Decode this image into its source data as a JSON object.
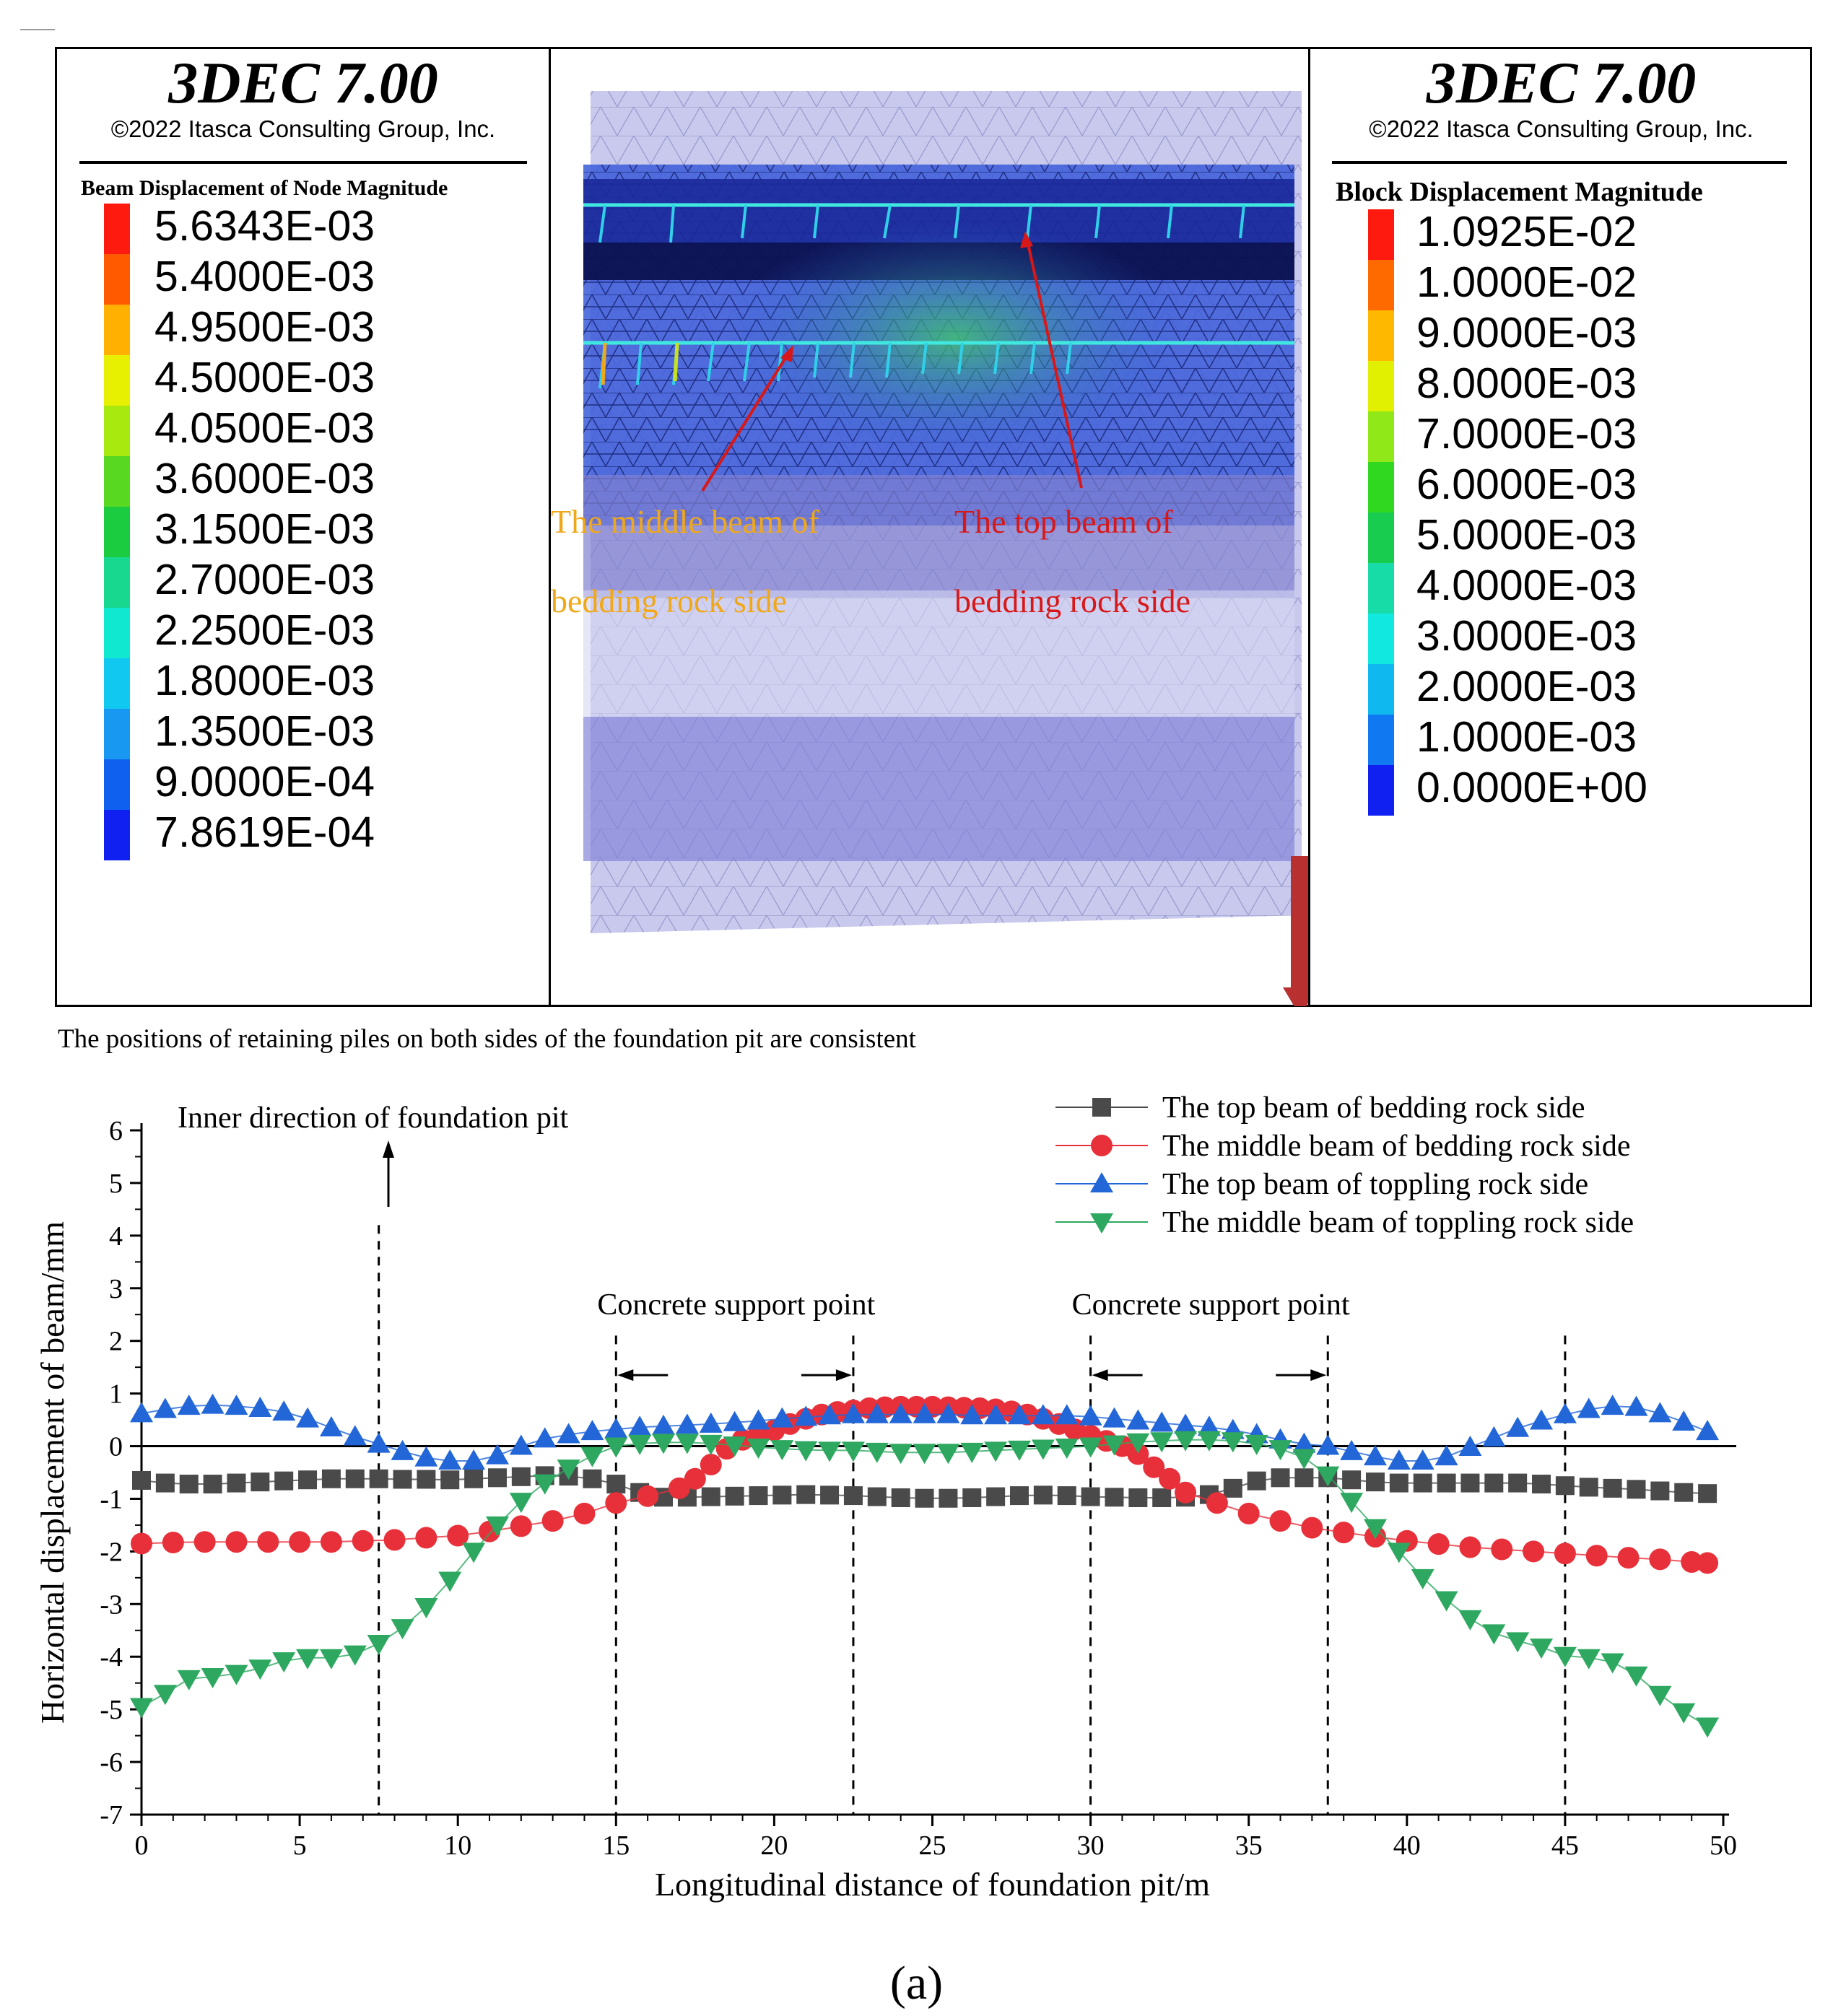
{
  "panel_left": {
    "brand": "3DEC 7.00",
    "copyright": "©2022 Itasca Consulting Group, Inc.",
    "legend_title": "Beam Displacement of Node Magnitude",
    "legend_values": [
      "5.6343E-03",
      "5.4000E-03",
      "4.9500E-03",
      "4.5000E-03",
      "4.0500E-03",
      "3.6000E-03",
      "3.1500E-03",
      "2.7000E-03",
      "2.2500E-03",
      "1.8000E-03",
      "1.3500E-03",
      "9.0000E-04",
      "7.8619E-04"
    ],
    "legend_colors": [
      "#ff1a10",
      "#ff5a00",
      "#ffb000",
      "#e6f000",
      "#a8ea10",
      "#58d820",
      "#1ccc40",
      "#18d890",
      "#10e8d0",
      "#10c8f0",
      "#1898f0",
      "#1060f0",
      "#1020f0"
    ]
  },
  "panel_right": {
    "brand": "3DEC 7.00",
    "copyright": "©2022 Itasca Consulting Group, Inc.",
    "legend_title": "Block  Displacement Magnitude",
    "legend_values": [
      "1.0925E-02",
      "1.0000E-02",
      "9.0000E-03",
      "8.0000E-03",
      "7.0000E-03",
      "6.0000E-03",
      "5.0000E-03",
      "4.0000E-03",
      "3.0000E-03",
      "2.0000E-03",
      "1.0000E-03",
      "0.0000E+00"
    ],
    "legend_colors": [
      "#ff1a10",
      "#ff6a00",
      "#ffb800",
      "#e0f000",
      "#90e818",
      "#30d820",
      "#18cc50",
      "#18dca8",
      "#10e8e0",
      "#10b8f0",
      "#1078f0",
      "#1020f0"
    ]
  },
  "model_annotations": {
    "middle_beam_line1": "The  middle  beam  of",
    "middle_beam_line2": "bedding rock side",
    "top_beam_line1": "The top beam of",
    "top_beam_line2": "bedding rock side",
    "middle_color": "#f0a818",
    "top_color": "#d81818"
  },
  "note": "The positions of retaining piles on both sides of the foundation pit are consistent",
  "caption": "(a)",
  "chart_data": {
    "type": "line",
    "xlabel": "Longitudinal distance of foundation pit/m",
    "ylabel": "Horizontal displacement of beam/mm",
    "xlim": [
      0,
      50
    ],
    "ylim": [
      -7,
      6
    ],
    "xticks": [
      0,
      5,
      10,
      15,
      20,
      25,
      30,
      35,
      40,
      45,
      50
    ],
    "yticks": [
      -7,
      -6,
      -5,
      -4,
      -3,
      -2,
      -1,
      0,
      1,
      2,
      3,
      4,
      5,
      6
    ],
    "dashed_x": [
      7.5,
      15,
      22.5,
      30,
      37.5,
      45
    ],
    "annotations": {
      "inner_direction": "Inner direction of foundation pit",
      "support_point_1": "Concrete support point",
      "support_point_2": "Concrete support point"
    },
    "series": [
      {
        "name": "The top beam of bedding rock side",
        "marker": "square",
        "color": "#4a4a4a",
        "x": [
          0,
          0.75,
          1.5,
          2.25,
          3,
          3.75,
          4.5,
          5.25,
          6,
          6.75,
          7.5,
          8.25,
          9,
          9.75,
          10.5,
          11.25,
          12,
          12.75,
          13.5,
          14.25,
          15,
          15.75,
          16.5,
          17.25,
          18,
          18.75,
          19.5,
          20.25,
          21,
          21.75,
          22.5,
          23.25,
          24,
          24.75,
          25.5,
          26.25,
          27,
          27.75,
          28.5,
          29.25,
          30,
          30.75,
          31.5,
          32.25,
          33,
          33.75,
          34.5,
          35.25,
          36,
          36.75,
          37.5,
          38.25,
          39,
          39.75,
          40.5,
          41.25,
          42,
          42.75,
          43.5,
          44.25,
          45,
          45.75,
          46.5,
          47.25,
          48,
          48.75,
          49.5
        ],
        "y": [
          -0.65,
          -0.7,
          -0.72,
          -0.72,
          -0.7,
          -0.68,
          -0.66,
          -0.64,
          -0.62,
          -0.62,
          -0.62,
          -0.63,
          -0.63,
          -0.64,
          -0.62,
          -0.6,
          -0.58,
          -0.56,
          -0.57,
          -0.62,
          -0.72,
          -0.88,
          -0.97,
          -0.97,
          -0.96,
          -0.95,
          -0.94,
          -0.93,
          -0.92,
          -0.93,
          -0.94,
          -0.96,
          -0.98,
          -0.99,
          -0.99,
          -0.98,
          -0.96,
          -0.94,
          -0.93,
          -0.94,
          -0.96,
          -0.97,
          -0.98,
          -0.98,
          -0.97,
          -0.92,
          -0.8,
          -0.66,
          -0.6,
          -0.6,
          -0.6,
          -0.64,
          -0.68,
          -0.7,
          -0.7,
          -0.7,
          -0.7,
          -0.7,
          -0.7,
          -0.72,
          -0.75,
          -0.78,
          -0.8,
          -0.82,
          -0.85,
          -0.88,
          -0.9
        ]
      },
      {
        "name": "The middle beam of bedding rock side",
        "marker": "circle",
        "color": "#e8303a",
        "x": [
          0,
          1,
          2,
          3,
          4,
          5,
          6,
          7,
          8,
          9,
          10,
          11,
          12,
          13,
          14,
          15,
          16,
          17,
          17.5,
          18,
          18.5,
          19,
          19.5,
          20,
          20.5,
          21,
          21.5,
          22,
          22.5,
          23,
          23.5,
          24,
          24.5,
          25,
          25.5,
          26,
          26.5,
          27,
          27.5,
          28,
          28.5,
          29,
          29.5,
          30,
          30.5,
          31,
          31.5,
          32,
          32.5,
          33,
          34,
          35,
          36,
          37,
          38,
          39,
          40,
          41,
          42,
          43,
          44,
          45,
          46,
          47,
          48,
          49,
          49.5
        ],
        "y": [
          -1.85,
          -1.83,
          -1.82,
          -1.82,
          -1.82,
          -1.82,
          -1.82,
          -1.8,
          -1.78,
          -1.74,
          -1.7,
          -1.62,
          -1.52,
          -1.42,
          -1.28,
          -1.08,
          -0.95,
          -0.8,
          -0.62,
          -0.35,
          -0.05,
          0.12,
          0.22,
          0.3,
          0.42,
          0.52,
          0.6,
          0.65,
          0.68,
          0.72,
          0.74,
          0.75,
          0.75,
          0.75,
          0.74,
          0.73,
          0.72,
          0.7,
          0.66,
          0.6,
          0.52,
          0.42,
          0.32,
          0.2,
          0.1,
          0.0,
          -0.15,
          -0.4,
          -0.62,
          -0.88,
          -1.08,
          -1.28,
          -1.42,
          -1.55,
          -1.64,
          -1.72,
          -1.8,
          -1.86,
          -1.92,
          -1.96,
          -2.0,
          -2.04,
          -2.08,
          -2.12,
          -2.15,
          -2.2,
          -2.22
        ]
      },
      {
        "name": "The top beam of toppling rock side",
        "marker": "triangle-up",
        "color": "#2266d8",
        "x": [
          0,
          0.75,
          1.5,
          2.25,
          3,
          3.75,
          4.5,
          5.25,
          6,
          6.75,
          7.5,
          8.25,
          9,
          9.75,
          10.5,
          11.25,
          12,
          12.75,
          13.5,
          14.25,
          15,
          15.75,
          16.5,
          17.25,
          18,
          18.75,
          19.5,
          20.25,
          21,
          21.75,
          22.5,
          23.25,
          24,
          24.75,
          25.5,
          26.25,
          27,
          27.75,
          28.5,
          29.25,
          30,
          30.75,
          31.5,
          32.25,
          33,
          33.75,
          34.5,
          35.25,
          36,
          36.75,
          37.5,
          38.25,
          39,
          39.75,
          40.5,
          41.25,
          42,
          42.75,
          43.5,
          44.25,
          45,
          45.75,
          46.5,
          47.25,
          48,
          48.75,
          49.5
        ],
        "y": [
          0.62,
          0.7,
          0.76,
          0.78,
          0.76,
          0.72,
          0.65,
          0.52,
          0.35,
          0.18,
          0.04,
          -0.1,
          -0.22,
          -0.28,
          -0.28,
          -0.18,
          0.0,
          0.14,
          0.22,
          0.28,
          0.32,
          0.36,
          0.38,
          0.4,
          0.42,
          0.45,
          0.48,
          0.52,
          0.55,
          0.58,
          0.6,
          0.6,
          0.6,
          0.6,
          0.6,
          0.58,
          0.58,
          0.58,
          0.58,
          0.58,
          0.56,
          0.52,
          0.48,
          0.44,
          0.4,
          0.36,
          0.3,
          0.22,
          0.12,
          0.04,
          0.0,
          -0.1,
          -0.2,
          -0.28,
          -0.28,
          -0.2,
          -0.02,
          0.16,
          0.34,
          0.48,
          0.6,
          0.7,
          0.76,
          0.74,
          0.62,
          0.46,
          0.28
        ]
      },
      {
        "name": "The middle beam of toppling rock side",
        "marker": "triangle-down",
        "color": "#2ea860",
        "x": [
          0,
          0.75,
          1.5,
          2.25,
          3,
          3.75,
          4.5,
          5.25,
          6,
          6.75,
          7.5,
          8.25,
          9,
          9.75,
          10.5,
          11.25,
          12,
          12.75,
          13.5,
          14.25,
          15,
          15.75,
          16.5,
          17.25,
          18,
          18.75,
          19.5,
          20.25,
          21,
          21.75,
          22.5,
          23.25,
          24,
          24.75,
          25.5,
          26.25,
          27,
          27.75,
          28.5,
          29.25,
          30,
          30.75,
          31.5,
          32.25,
          33,
          33.75,
          34.5,
          35.25,
          36,
          36.75,
          37.5,
          38.25,
          39,
          39.75,
          40.5,
          41.25,
          42,
          42.75,
          43.5,
          44.25,
          45,
          45.75,
          46.5,
          47.25,
          48,
          48.75,
          49.5
        ],
        "y": [
          -4.95,
          -4.7,
          -4.42,
          -4.38,
          -4.32,
          -4.22,
          -4.08,
          -4.02,
          -4.02,
          -3.95,
          -3.75,
          -3.45,
          -3.05,
          -2.55,
          -2.0,
          -1.5,
          -1.05,
          -0.7,
          -0.42,
          -0.18,
          0.0,
          0.05,
          0.07,
          0.07,
          0.05,
          0.02,
          -0.02,
          -0.05,
          -0.07,
          -0.08,
          -0.08,
          -0.1,
          -0.12,
          -0.12,
          -0.12,
          -0.1,
          -0.08,
          -0.06,
          -0.04,
          -0.02,
          0.0,
          0.04,
          0.08,
          0.1,
          0.12,
          0.12,
          0.1,
          0.05,
          -0.05,
          -0.22,
          -0.55,
          -1.05,
          -1.55,
          -2.0,
          -2.5,
          -2.92,
          -3.28,
          -3.55,
          -3.7,
          -3.82,
          -3.98,
          -4.02,
          -4.1,
          -4.35,
          -4.72,
          -5.05,
          -5.32
        ]
      }
    ]
  }
}
